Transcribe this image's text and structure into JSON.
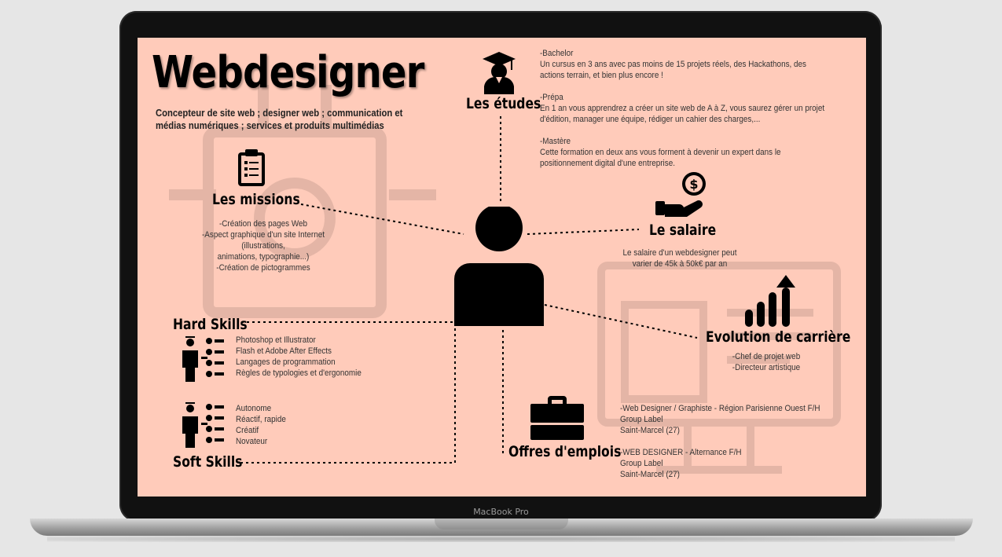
{
  "device": {
    "bezel_label": "MacBook Pro"
  },
  "infographic": {
    "title": "Webdesigner",
    "subtitle": "Concepteur de site web ; designer web ; communication et médias numériques ; services et produits multimédias",
    "etudes": {
      "heading": "Les études",
      "icon": "graduate-icon",
      "text": "-Bachelor\nUn cursus en 3 ans avec pas moins de 15 projets réels, des Hackathons, des actions terrain, et bien plus encore !\n\n-Prépa\nEn 1 an vous apprendrez a créer un site web de A à Z, vous saurez gérer un projet d'édition, manager une équipe, rédiger un cahier des charges,...\n\n-Mastère\nCette formation en deux ans vous forment à devenir un expert dans le positionnement digital d'une entreprise."
    },
    "missions": {
      "heading": "Les missions",
      "icon": "clipboard-icon",
      "text": "-Création des pages Web\n-Aspect graphique d'un site Internet\n(illustrations,\nanimations, typographie...)\n-Création de pictogrammes"
    },
    "salaire": {
      "heading": "Le salaire",
      "icon": "money-hand-icon",
      "text": "Le salaire d'un webdesigner peut\nvarier de 45k à 50k€ par an"
    },
    "evolution": {
      "heading": "Evolution de carrière",
      "icon": "growth-chart-icon",
      "text": "-Chef de projet web\n-Directeur artistique"
    },
    "hard_skills": {
      "heading": "Hard Skills",
      "icon": "skills-person-icon",
      "text": "Photoshop et Illustrator\nFlash et Adobe After Effects\nLangages de programmation\nRègles de typologies et d'ergonomie"
    },
    "soft_skills": {
      "heading": "Soft Skills",
      "icon": "skills-person-icon",
      "text": "Autonome\nRéactif, rapide\nCréatif\nNovateur"
    },
    "offres": {
      "heading": "Offres d'emplois",
      "icon": "briefcase-icon",
      "offer1": "-Web Designer / Graphiste - Région Parisienne Ouest F/H\nGroup Label\nSaint-Marcel (27)",
      "offer2": "-WEB DESIGNER - Alternance F/H\nGroup Label\nSaint-Marcel (27)"
    },
    "center_icon": "person-icon"
  },
  "colors": {
    "screen_bg": "#ffcbba",
    "text": "#000000"
  }
}
